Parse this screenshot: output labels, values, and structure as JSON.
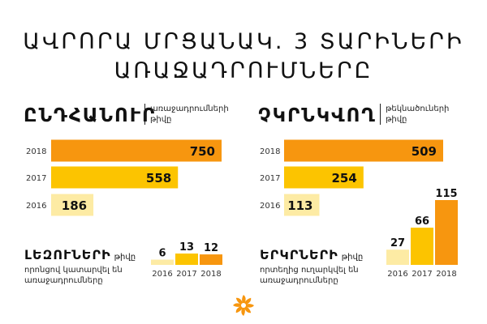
{
  "title": {
    "line1": "ԱՎՐՈՐԱ ՄՐՑԱՆԱԿ. 3 ՏԱՐԻՆԵՐԻ",
    "line2": "ԱՌԱՋԱԴՐՈՒՄՆԵՐԸ"
  },
  "sections": {
    "total": {
      "heading": "ԸՆԴՀԱՆՈՒՐ",
      "sub1": "առաջադրումների",
      "sub2": "թիվը"
    },
    "unique": {
      "heading": "ՉԿՐՆԿՎՈՂ",
      "sub1": "թեկնածուների",
      "sub2": "թիվը"
    },
    "languages": {
      "heading": "ԼԵԶՈՒՆԵՐԻ",
      "word": "թիվը",
      "sub1": "որոնցով կատարվել են",
      "sub2": "առաջադրումները"
    },
    "countries": {
      "heading": "ԵՐԿՐՆԵՐԻ",
      "word": "թիվը",
      "sub1": "որտեղից ուղարկվել են",
      "sub2": "առաջադրումները"
    }
  },
  "colors": {
    "y2018": "#f7960f",
    "y2017": "#fcc400",
    "y2016": "#fdeba4",
    "logo": "#f7960f"
  },
  "logo_icon": "aurora-flower-icon",
  "chart_data": [
    {
      "id": "total",
      "type": "bar",
      "orientation": "horizontal",
      "categories": [
        "2018",
        "2017",
        "2016"
      ],
      "values": [
        750,
        558,
        186
      ]
    },
    {
      "id": "unique",
      "type": "bar",
      "orientation": "horizontal",
      "categories": [
        "2018",
        "2017",
        "2016"
      ],
      "values": [
        509,
        254,
        113
      ]
    },
    {
      "id": "languages",
      "type": "bar",
      "orientation": "vertical",
      "categories": [
        "2016",
        "2017",
        "2018"
      ],
      "values": [
        6,
        13,
        12
      ]
    },
    {
      "id": "countries",
      "type": "bar",
      "orientation": "vertical",
      "categories": [
        "2016",
        "2017",
        "2018"
      ],
      "values": [
        27,
        66,
        115
      ]
    }
  ]
}
